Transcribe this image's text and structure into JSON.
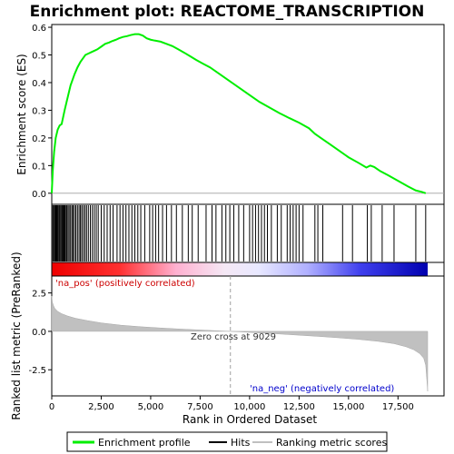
{
  "chart_data": {
    "type": "line",
    "title": "Enrichment plot: REACTOME_TRANSCRIPTION",
    "xlabel": "Rank in Ordered Dataset",
    "colors": {
      "enrichment": "#00ee00",
      "hits": "#000000",
      "metric": "#c0c0c0",
      "pos_label": "#cc0000",
      "neg_label": "#0000cc",
      "zero_line": "#a0a0a0"
    },
    "es_panel": {
      "ylabel": "Enrichment score (ES)",
      "ylim": [
        -0.04,
        0.61
      ],
      "yticks": [
        0.0,
        0.1,
        0.2,
        0.3,
        0.4,
        0.5,
        0.6
      ],
      "ytick_labels": [
        "0.0",
        "0.1",
        "0.2",
        "0.3",
        "0.4",
        "0.5",
        "0.6"
      ],
      "series": [
        {
          "name": "Enrichment profile",
          "x": [
            0,
            50,
            120,
            200,
            300,
            400,
            500,
            560,
            650,
            750,
            850,
            950,
            1050,
            1150,
            1300,
            1450,
            1600,
            1700,
            1850,
            2000,
            2150,
            2300,
            2500,
            2700,
            2900,
            3050,
            3250,
            3400,
            3600,
            3800,
            4000,
            4200,
            4400,
            4600,
            4800,
            5000,
            5200,
            5500,
            5800,
            6100,
            6400,
            6700,
            7000,
            7300,
            7600,
            8000,
            8500,
            9000,
            9500,
            10000,
            10500,
            11000,
            11500,
            12000,
            12500,
            13000,
            13300,
            13600,
            14000,
            14500,
            15000,
            15500,
            15900,
            16100,
            16300,
            16600,
            17000,
            17500,
            18000,
            18400,
            18700,
            18900
          ],
          "y": [
            0.0,
            0.08,
            0.15,
            0.2,
            0.23,
            0.245,
            0.25,
            0.27,
            0.3,
            0.33,
            0.36,
            0.39,
            0.41,
            0.43,
            0.455,
            0.475,
            0.49,
            0.5,
            0.505,
            0.51,
            0.515,
            0.52,
            0.53,
            0.54,
            0.545,
            0.55,
            0.555,
            0.56,
            0.565,
            0.568,
            0.572,
            0.575,
            0.575,
            0.57,
            0.56,
            0.555,
            0.552,
            0.548,
            0.54,
            0.532,
            0.52,
            0.508,
            0.495,
            0.482,
            0.47,
            0.455,
            0.43,
            0.405,
            0.38,
            0.355,
            0.33,
            0.31,
            0.29,
            0.272,
            0.255,
            0.235,
            0.215,
            0.2,
            0.18,
            0.155,
            0.13,
            0.11,
            0.093,
            0.1,
            0.095,
            0.08,
            0.065,
            0.045,
            0.025,
            0.01,
            0.005,
            0.0
          ]
        }
      ]
    },
    "hits_panel": {
      "hit_positions": [
        10,
        60,
        100,
        150,
        190,
        230,
        270,
        310,
        360,
        400,
        450,
        500,
        540,
        580,
        620,
        660,
        700,
        760,
        820,
        880,
        950,
        1020,
        1080,
        1150,
        1220,
        1300,
        1380,
        1450,
        1520,
        1600,
        1680,
        1760,
        1850,
        1950,
        2050,
        2150,
        2250,
        2350,
        2500,
        2650,
        2800,
        2950,
        3100,
        3300,
        3450,
        3600,
        3750,
        3900,
        4050,
        4200,
        4350,
        4500,
        4700,
        4950,
        5100,
        5250,
        5400,
        5600,
        5800,
        6050,
        6300,
        6600,
        6900,
        7100,
        7400,
        7800,
        8100,
        8300,
        8600,
        8800,
        9000,
        9200,
        9450,
        9700,
        10000,
        10150,
        10300,
        10450,
        10600,
        10750,
        10900,
        11100,
        11400,
        11600,
        11900,
        12050,
        12200,
        12350,
        12500,
        12700,
        13300,
        13450,
        13700,
        14700,
        15200,
        15950,
        16150,
        16700,
        17300,
        18400,
        18900
      ]
    },
    "metric_panel": {
      "ylabel": "Ranked list metric (PreRanked)",
      "ylim": [
        -4.2,
        3.6
      ],
      "yticks": [
        2.5,
        0.0,
        -2.5
      ],
      "ytick_labels": [
        "2.5",
        "0.0",
        "-2.5"
      ],
      "series": [
        {
          "name": "Ranking metric scores",
          "x": [
            0,
            30,
            80,
            150,
            300,
            500,
            800,
            1200,
            1800,
            2500,
            3500,
            4500,
            5500,
            6500,
            7500,
            8500,
            9029,
            9500,
            10500,
            11500,
            12500,
            13500,
            14500,
            15500,
            16500,
            17300,
            17900,
            18300,
            18600,
            18800,
            18900,
            18950,
            19000
          ],
          "y": [
            2.3,
            1.9,
            1.7,
            1.5,
            1.3,
            1.15,
            1.0,
            0.85,
            0.7,
            0.55,
            0.4,
            0.3,
            0.22,
            0.15,
            0.09,
            0.03,
            0.0,
            -0.03,
            -0.1,
            -0.17,
            -0.25,
            -0.33,
            -0.42,
            -0.52,
            -0.65,
            -0.8,
            -1.0,
            -1.2,
            -1.45,
            -1.75,
            -2.2,
            -3.0,
            -3.9
          ]
        }
      ],
      "annotations": {
        "pos": "'na_pos' (positively correlated)",
        "neg": "'na_neg' (negatively correlated)",
        "zero_cross": "Zero cross at 9029"
      },
      "zero_cross": 9029
    },
    "xlim": [
      0,
      19000
    ],
    "xticks": [
      0,
      2500,
      5000,
      7500,
      10000,
      12500,
      15000,
      17500
    ],
    "xtick_labels": [
      "0",
      "2,500",
      "5,000",
      "7,500",
      "10,000",
      "12,500",
      "15,000",
      "17,500"
    ],
    "legend": {
      "placement": "bottom",
      "entries": [
        "Enrichment profile",
        "Hits",
        "Ranking metric scores"
      ]
    }
  }
}
